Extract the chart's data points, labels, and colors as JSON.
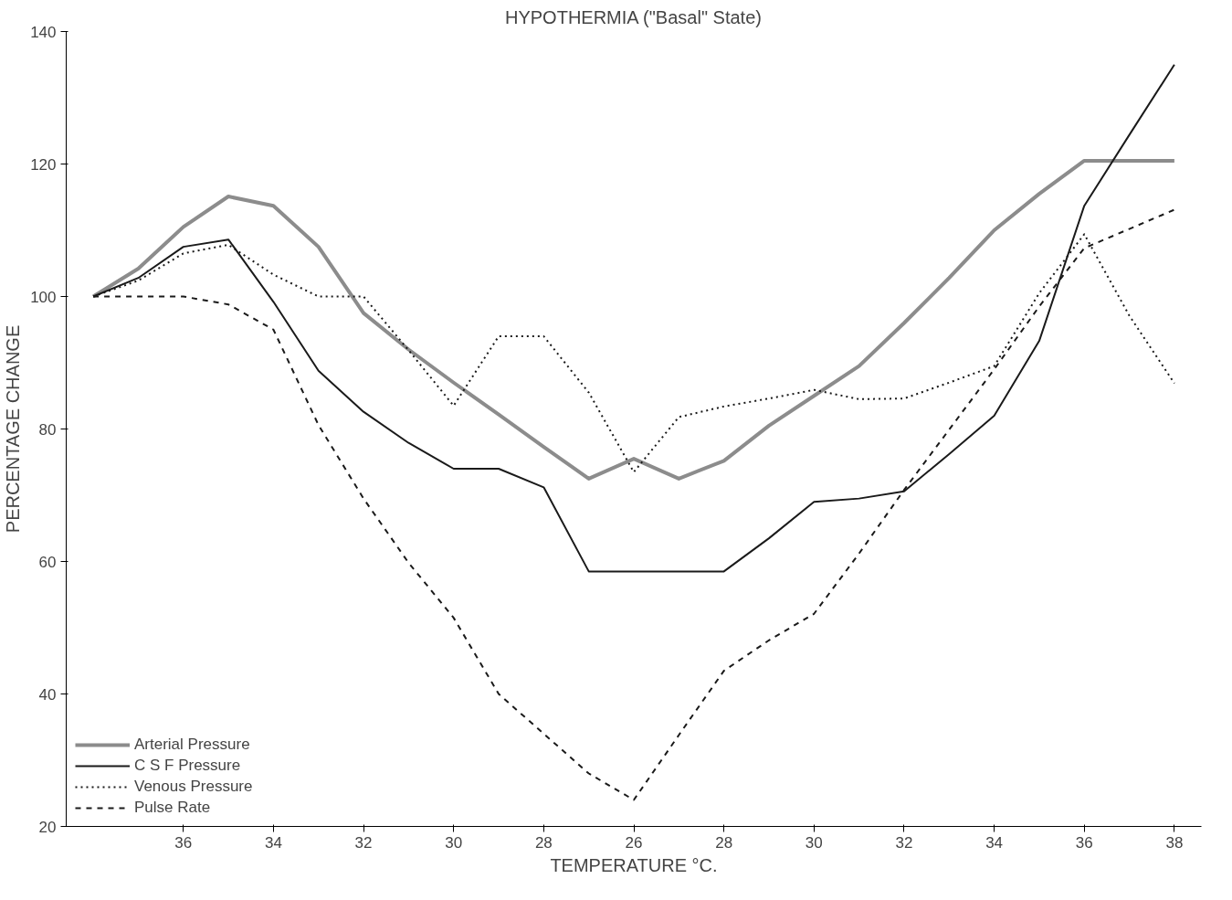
{
  "chart_data": {
    "type": "line",
    "title": "HYPOTHERMIA (\"Basal\" State)",
    "xlabel": "TEMPERATURE °C.",
    "ylabel": "PERCENTAGE CHANGE",
    "categories": [
      null,
      null,
      "36",
      null,
      "34",
      null,
      "32",
      null,
      "30",
      null,
      "28",
      null,
      "26",
      null,
      "28",
      null,
      "30",
      null,
      "32",
      null,
      "34",
      null,
      "36",
      null,
      "38"
    ],
    "ylim": [
      20,
      140
    ],
    "yticks": [
      20,
      40,
      60,
      80,
      100,
      120,
      140
    ],
    "grid": false,
    "legend": "bottom left",
    "marker": "none",
    "series": [
      {
        "name": "Arterial Pressure",
        "color": "#8c8c8c",
        "line_style": "solid",
        "values": [
          100,
          104.2,
          110.5,
          115.1,
          113.7,
          107.5,
          97.5,
          92,
          87,
          82.2,
          77.3,
          72.5,
          75.5,
          72.5,
          75.2,
          80.5,
          85,
          89.5,
          96,
          102.8,
          110,
          115.5,
          120.5,
          120.5,
          120.5
        ]
      },
      {
        "name": "C S F Pressure",
        "color": "#1a1a1a",
        "line_style": "solid",
        "values": [
          100,
          102.8,
          107.5,
          108.6,
          99.2,
          88.8,
          82.6,
          77.9,
          74,
          74,
          71.2,
          58.5,
          58.5,
          58.5,
          58.5,
          63.5,
          69,
          69.5,
          70.6,
          76.2,
          82,
          93.3,
          113.7,
          124.4,
          135
        ]
      },
      {
        "name": "Venous Pressure",
        "color": "#1a1a1a",
        "line_style": "dotted",
        "values": [
          100,
          102.4,
          106.5,
          107.8,
          103.3,
          100,
          100,
          91.9,
          83.5,
          94,
          94,
          85.5,
          73.5,
          81.8,
          83.4,
          84.6,
          85.9,
          84.5,
          84.6,
          87,
          89.5,
          100.5,
          109.4,
          97.1,
          86.9
        ]
      },
      {
        "name": "Pulse Rate",
        "color": "#1a1a1a",
        "line_style": "dashed",
        "values": [
          100,
          100,
          100,
          98.8,
          95,
          80.6,
          69.5,
          59.8,
          51.5,
          40,
          34,
          28,
          24,
          33.8,
          43.5,
          48.1,
          52.1,
          61.2,
          70.8,
          79.9,
          89,
          98.5,
          107.3,
          110.2,
          113.1
        ]
      }
    ]
  }
}
